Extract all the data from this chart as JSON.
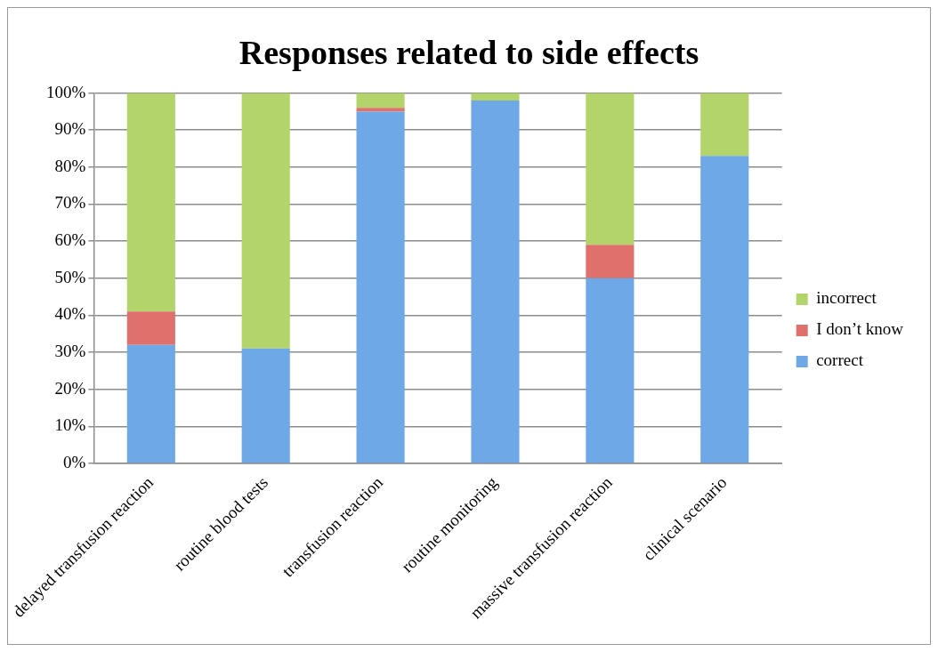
{
  "chart_data": {
    "type": "bar",
    "title": "Responses related to side effects",
    "categories": [
      "delayed transfusion reaction",
      "routine blood tests",
      "transfusion reaction",
      "routine monitoring",
      "massive transfusion reaction",
      "clinical scenario"
    ],
    "stacked": true,
    "series": [
      {
        "name": "correct",
        "color": "#6fa8e6",
        "values": [
          32,
          31,
          95,
          98,
          50,
          83
        ]
      },
      {
        "name": "I don’t know",
        "color": "#e0706c",
        "values": [
          9,
          0,
          1,
          0,
          9,
          0
        ]
      },
      {
        "name": "incorrect",
        "color": "#b2d46a",
        "values": [
          59,
          69,
          4,
          2,
          41,
          17
        ]
      }
    ],
    "ylim": [
      0,
      100
    ],
    "yticks": [
      {
        "value": 0,
        "label": "0%"
      },
      {
        "value": 10,
        "label": "10%"
      },
      {
        "value": 20,
        "label": "20%"
      },
      {
        "value": 30,
        "label": "30%"
      },
      {
        "value": 40,
        "label": "40%"
      },
      {
        "value": 50,
        "label": "50%"
      },
      {
        "value": 60,
        "label": "60%"
      },
      {
        "value": 70,
        "label": "70%"
      },
      {
        "value": 80,
        "label": "80%"
      },
      {
        "value": 90,
        "label": "90%"
      },
      {
        "value": 100,
        "label": "100%"
      }
    ],
    "grid": "y",
    "legend": "right"
  }
}
